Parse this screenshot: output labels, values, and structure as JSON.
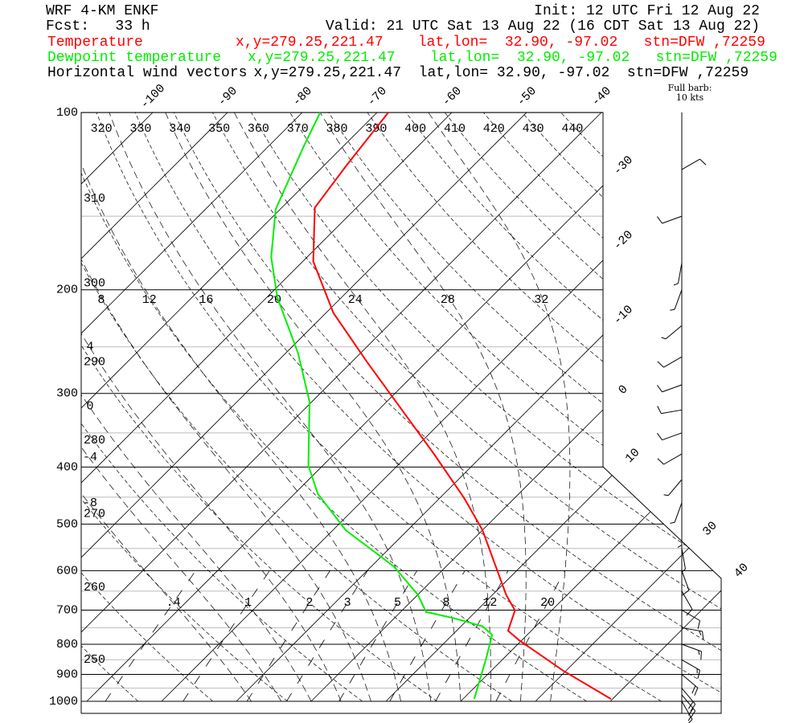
{
  "chart_data": {
    "type": "skewt",
    "title": "WRF 4-KM ENKF",
    "init": "Init: 12 UTC Fri 12 Aug 22",
    "forecast": "Fcst:   33 h",
    "valid": "Valid: 21 UTC Sat 13 Aug 22 (16 CDT Sat 13 Aug 22)",
    "ylim": [
      1000,
      100
    ],
    "log_scale": true,
    "yticks": [
      100,
      200,
      300,
      400,
      500,
      600,
      700,
      800,
      900,
      1000
    ],
    "minor_isobars": [
      150,
      250,
      350,
      450,
      550,
      650,
      750,
      850,
      950
    ],
    "isotherms": [
      -100,
      -90,
      -80,
      -70,
      -60,
      -50,
      -40,
      -30,
      -20,
      -10,
      0,
      10,
      20,
      30,
      40
    ],
    "isotherm_labels": [
      -100,
      -90,
      -80,
      -70,
      -60,
      -50,
      -40,
      -30,
      -20,
      -10,
      0,
      10,
      30,
      40
    ],
    "dry_adiabats": [
      250,
      260,
      270,
      280,
      290,
      300,
      310,
      320,
      330,
      340,
      350,
      360,
      370,
      380,
      390,
      400,
      410,
      420,
      430,
      440
    ],
    "moist_adiabats": [
      -8,
      -4,
      0,
      4,
      8,
      12,
      16,
      20,
      24,
      28,
      32
    ],
    "mixing_ratios": [
      {
        "value": 0.4,
        "label": ".4"
      },
      1,
      2,
      3,
      5,
      8,
      12,
      20
    ],
    "series": [
      {
        "name": "Temperature",
        "color": "#ff0000",
        "location": "x,y=279.25,221.47    lat,lon=  32.90, -97.02   stn=DFW ,72259",
        "pressure": [
          991,
          887,
          787,
          759,
          701,
          659,
          512,
          452,
          380,
          265,
          219,
          179,
          145,
          123,
          100
        ],
        "values": [
          39.8,
          29.6,
          19.6,
          16.9,
          15.1,
          11.8,
          0,
          -6.7,
          -16.7,
          -38,
          -49,
          -58.6,
          -65.6,
          -67,
          -68.5
        ]
      },
      {
        "name": "Dewpoint temperature",
        "color": "#00ee00",
        "location": "x,y=279.25,221.47    lat,lon=  32.90, -97.02   stn=DFW ,72259",
        "pressure": [
          991,
          847,
          771,
          746,
          723,
          705,
          659,
          590,
          512,
          444,
          398,
          310,
          256,
          206,
          176,
          146,
          114,
          100
        ],
        "values": [
          21.5,
          17.7,
          15.3,
          12.9,
          8.1,
          3.4,
          0,
          -7,
          -18.3,
          -26.9,
          -31.9,
          -40.3,
          -48.4,
          -58.6,
          -64.8,
          -70.6,
          -75.3,
          -77.6
        ]
      }
    ],
    "wind": {
      "name": "Horizontal wind vectors",
      "color": "#000000",
      "location": "x,y=279.25,221.47  lat,lon= 32.90, -97.02  stn=DFW ,72259",
      "pressure": [
        125,
        150,
        180,
        200,
        230,
        260,
        290,
        320,
        350,
        380,
        420,
        460,
        500,
        550,
        600,
        650,
        700,
        750,
        800,
        850,
        900,
        950,
        975,
        1000
      ],
      "direction": [
        60,
        250,
        190,
        200,
        230,
        240,
        250,
        260,
        250,
        240,
        220,
        200,
        180,
        170,
        160,
        150,
        120,
        100,
        110,
        120,
        130,
        140,
        140,
        150
      ],
      "speed": [
        10,
        10,
        5,
        5,
        5,
        10,
        10,
        10,
        10,
        10,
        5,
        5,
        5,
        5,
        10,
        10,
        10,
        15,
        15,
        15,
        20,
        20,
        20,
        15
      ]
    },
    "barb_key": "Full barb:",
    "barb_key_value": "10 kts"
  }
}
